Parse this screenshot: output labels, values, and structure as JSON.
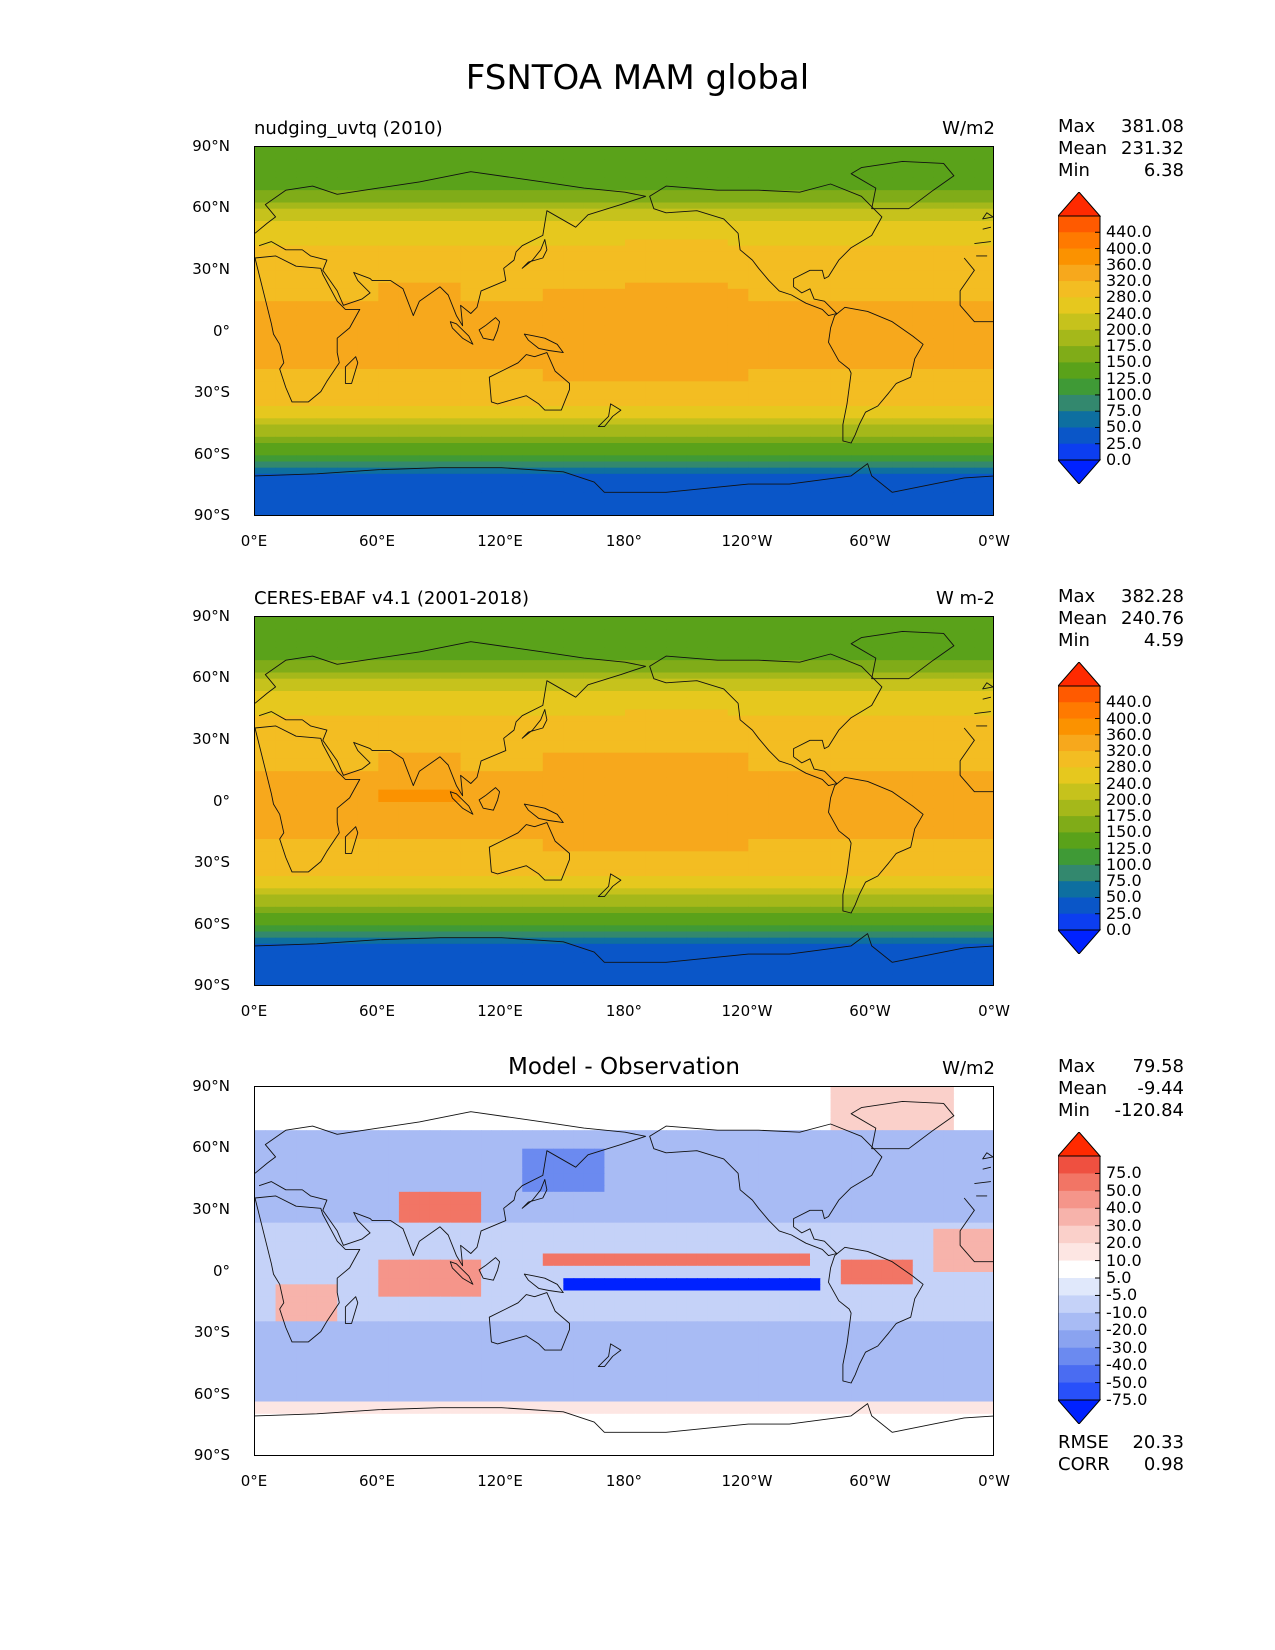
{
  "figure": {
    "title": "FSNTOA MAM global"
  },
  "panels": [
    {
      "subtitle": "nudging_uvtq (2010)",
      "units": "W/m2",
      "stats": {
        "max_label": "Max",
        "max": "381.08",
        "mean_label": "Mean",
        "mean": "231.32",
        "min_label": "Min",
        "min": "6.38"
      }
    },
    {
      "subtitle": "CERES-EBAF v4.1 (2001-2018)",
      "units": "W m-2",
      "stats": {
        "max_label": "Max",
        "max": "382.28",
        "mean_label": "Mean",
        "mean": "240.76",
        "min_label": "Min",
        "min": "4.59"
      }
    },
    {
      "subtitle": "Model - Observation",
      "units": "W/m2",
      "stats": {
        "max_label": "Max",
        "max": "79.58",
        "mean_label": "Mean",
        "mean": "-9.44",
        "min_label": "Min",
        "min": "-120.84"
      },
      "metrics": {
        "rmse_label": "RMSE",
        "rmse": "20.33",
        "corr_label": "CORR",
        "corr": "0.98"
      }
    }
  ],
  "axes": {
    "lat_ticks": [
      "90°N",
      "60°N",
      "30°N",
      "0°",
      "30°S",
      "60°S",
      "90°S"
    ],
    "lon_ticks": [
      "0°E",
      "60°E",
      "120°E",
      "180°",
      "120°W",
      "60°W",
      "0°W"
    ]
  },
  "colorbars": {
    "absolute": {
      "levels": [
        "440.0",
        "400.0",
        "360.0",
        "320.0",
        "280.0",
        "240.0",
        "200.0",
        "175.0",
        "150.0",
        "125.0",
        "100.0",
        "75.0",
        "50.0",
        "25.0",
        "0.0"
      ],
      "colors": [
        "#ff2a00",
        "#ff5a00",
        "#ff7a00",
        "#fb9200",
        "#f7a81c",
        "#f3bd22",
        "#e6c81e",
        "#c6c21c",
        "#a5b81a",
        "#80ac18",
        "#5aa21a",
        "#3f9a36",
        "#33886e",
        "#0e6fa0",
        "#0a56c8",
        "#0c3ef0",
        "#0022ff"
      ]
    },
    "difference": {
      "levels": [
        "75.0",
        "50.0",
        "40.0",
        "30.0",
        "20.0",
        "10.0",
        "5.0",
        "-5.0",
        "-10.0",
        "-20.0",
        "-30.0",
        "-40.0",
        "-50.0",
        "-75.0"
      ],
      "colors": [
        "#ff2a00",
        "#ef5040",
        "#f27565",
        "#f5958a",
        "#f7b3ab",
        "#fad0ca",
        "#fde6e3",
        "#ffffff",
        "#e0e8fb",
        "#c5d2f8",
        "#a8bbf4",
        "#8aa3f0",
        "#6b8af0",
        "#4a6cf2",
        "#2850fa",
        "#0022ff"
      ]
    }
  },
  "chart_data": [
    {
      "type": "heatmap",
      "title": "nudging_uvtq (2010)",
      "units": "W/m2",
      "xlabel": "",
      "ylabel": "",
      "x_ticks": [
        "0°E",
        "60°E",
        "120°E",
        "180°",
        "120°W",
        "60°W",
        "0°W"
      ],
      "y_ticks": [
        "90°N",
        "60°N",
        "30°N",
        "0°",
        "30°S",
        "60°S",
        "90°S"
      ],
      "lat": [
        -90,
        -60,
        -30,
        0,
        30,
        60,
        90
      ],
      "zonal_mean_approx": [
        6,
        60,
        240,
        300,
        270,
        150,
        100
      ],
      "stats": {
        "max": 381.08,
        "mean": 231.32,
        "min": 6.38
      }
    },
    {
      "type": "heatmap",
      "title": "CERES-EBAF v4.1 (2001-2018)",
      "units": "W m-2",
      "xlabel": "",
      "ylabel": "",
      "x_ticks": [
        "0°E",
        "60°E",
        "120°E",
        "180°",
        "120°W",
        "60°W",
        "0°W"
      ],
      "y_ticks": [
        "90°N",
        "60°N",
        "30°N",
        "0°",
        "30°S",
        "60°S",
        "90°S"
      ],
      "lat": [
        -90,
        -60,
        -30,
        0,
        30,
        60,
        90
      ],
      "zonal_mean_approx": [
        5,
        60,
        250,
        320,
        280,
        160,
        100
      ],
      "stats": {
        "max": 382.28,
        "mean": 240.76,
        "min": 4.59
      }
    },
    {
      "type": "heatmap",
      "title": "Model - Observation",
      "units": "W/m2",
      "xlabel": "",
      "ylabel": "",
      "x_ticks": [
        "0°E",
        "60°E",
        "120°E",
        "180°",
        "120°W",
        "60°W",
        "0°W"
      ],
      "y_ticks": [
        "90°N",
        "60°N",
        "30°N",
        "0°",
        "30°S",
        "60°S",
        "90°S"
      ],
      "lat": [
        -90,
        -60,
        -30,
        0,
        30,
        60,
        90
      ],
      "zonal_mean_approx": [
        0,
        -20,
        -20,
        -30,
        -10,
        -20,
        0
      ],
      "stats": {
        "max": 79.58,
        "mean": -9.44,
        "min": -120.84,
        "rmse": 20.33,
        "corr": 0.98
      }
    }
  ]
}
